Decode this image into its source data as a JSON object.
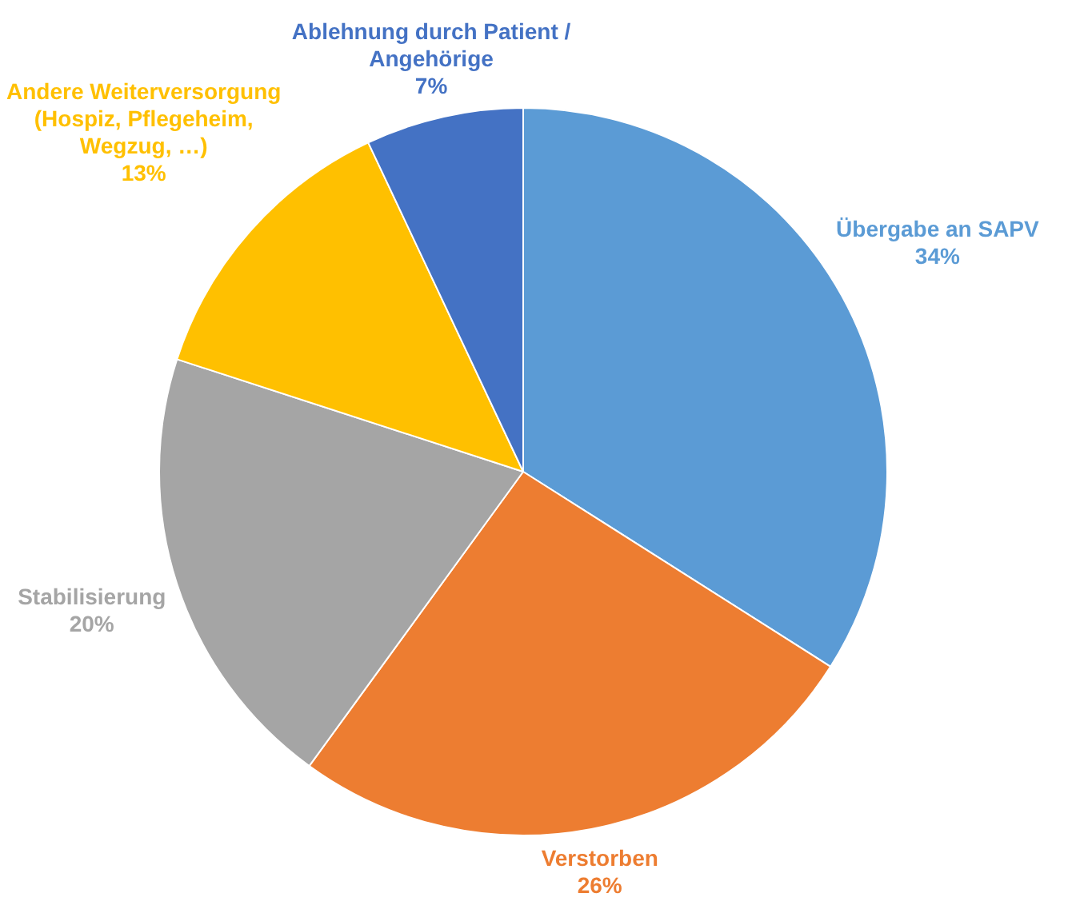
{
  "chart_data": {
    "type": "pie",
    "categories": [
      "Übergabe an SAPV",
      "Verstorben",
      "Stabilisierung",
      "Andere Weiterversorgung (Hospiz, Pflegeheim, Wegzug, …)",
      "Ablehnung durch Patient / Angehörige"
    ],
    "values": [
      34,
      26,
      20,
      13,
      7
    ],
    "value_labels": [
      "34%",
      "26%",
      "20%",
      "13%",
      "7%"
    ],
    "colors": [
      "#5b9bd5",
      "#ed7d31",
      "#a5a5a5",
      "#ffc000",
      "#4472c4"
    ],
    "legend": false
  }
}
